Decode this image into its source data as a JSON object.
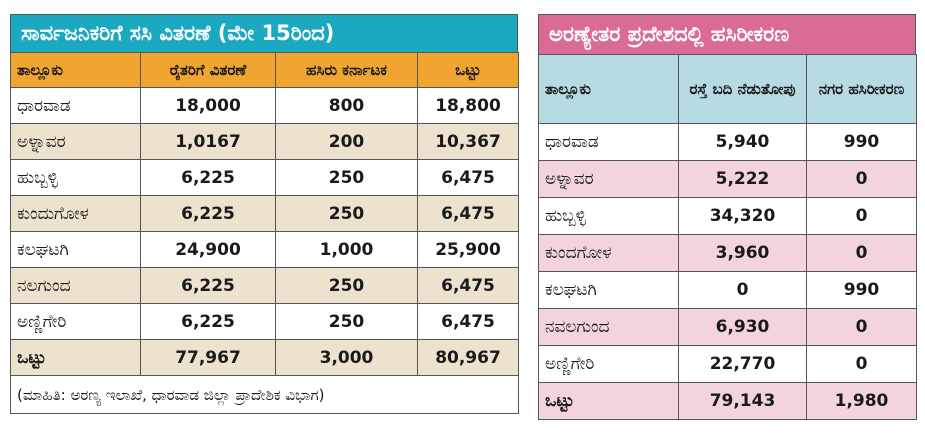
{
  "left_table": {
    "title": "ಸಾರ್ವಜನಿಕರಿಗೆ ಸಸಿ ವಿತರಣೆ (ಮೇ 15ರಿಂದ)",
    "headers": [
      "ತಾಲ್ಲೂಕು",
      "ರೈತರಿಗೆ ವಿತರಣೆ",
      "ಹಸಿರು ಕರ್ನಾಟಕ",
      "ಒಟ್ಟು"
    ],
    "rows": [
      [
        "ಧಾರವಾಡ",
        "18,000",
        "800",
        "18,800"
      ],
      [
        "ಅಳ್ನಾವರ",
        "1,0167",
        "200",
        "10,367"
      ],
      [
        "ಹುಬ್ಬಳ್ಳಿ",
        "6,225",
        "250",
        "6,475"
      ],
      [
        "ಕುಂದುಗೋಳ",
        "6,225",
        "250",
        "6,475"
      ],
      [
        "ಕಲಘಟಗಿ",
        "24,900",
        "1,000",
        "25,900"
      ],
      [
        "ನಲಗುಂದ",
        "6,225",
        "250",
        "6,475"
      ],
      [
        "ಅಣ್ಣಿಗೇರಿ",
        "6,225",
        "250",
        "6,475"
      ]
    ],
    "total": [
      "ಒಟ್ಟು",
      "77,967",
      "3,000",
      "80,967"
    ],
    "source": "(ಮಾಹಿತಿ: ಅರಣ್ಯ ಇಲಾಖೆ, ಧಾರವಾಡ ಜಿಲ್ಲಾ ಪ್ರಾದೇಶಿಕ ವಿಭಾಗ)"
  },
  "right_table": {
    "title": "ಅರಣ್ಯೇತರ ಪ್ರದೇಶದಲ್ಲಿ ಹಸಿರೀಕರಣ",
    "headers": [
      "ತಾಲ್ಲೂಕು",
      "ರಸ್ತೆ ಬದಿ ನೆಡುತೋಪು",
      "ನಗರ ಹಸಿರೀಕರಣ"
    ],
    "rows": [
      [
        "ಧಾರವಾಡ",
        "5,940",
        "990"
      ],
      [
        "ಅಳ್ನಾವರ",
        "5,222",
        "0"
      ],
      [
        "ಹುಬ್ಬಳ್ಳಿ",
        "34,320",
        "0"
      ],
      [
        "ಕುಂದಗೋಳ",
        "3,960",
        "0"
      ],
      [
        "ಕಲಘಟಗಿ",
        "0",
        "990"
      ],
      [
        "ನವಲಗುಂದ",
        "6,930",
        "0"
      ],
      [
        "ಅಣ್ಣಿಗೇರಿ",
        "22,770",
        "0"
      ]
    ],
    "total": [
      "ಒಟ್ಟು",
      "79,143",
      "1,980"
    ]
  },
  "colors": {
    "left_title_bg": "#1aa9c0",
    "left_header_bg": "#f0a531",
    "left_alt_row_bg": "#ece2ce",
    "right_title_bg": "#d96b95",
    "right_header_bg": "#b6dbe3",
    "right_alt_row_bg": "#f3d3de"
  }
}
